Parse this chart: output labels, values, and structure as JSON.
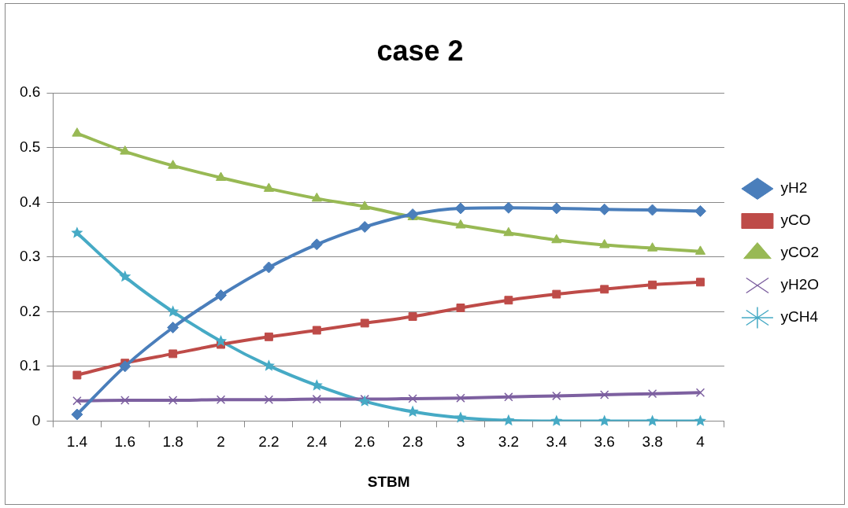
{
  "chart_data": {
    "type": "line",
    "title": "case 2",
    "xlabel": "STBM",
    "categories": [
      "1.4",
      "1.6",
      "1.8",
      "2",
      "2.2",
      "2.4",
      "2.6",
      "2.8",
      "3",
      "3.2",
      "3.4",
      "3.6",
      "3.8",
      "4"
    ],
    "ylim": [
      0,
      0.6
    ],
    "yticks": [
      0,
      0.1,
      0.2,
      0.3,
      0.4,
      0.5,
      0.6
    ],
    "grid": "y",
    "legend": "right",
    "series": [
      {
        "name": "yH2",
        "color": "#4a7ebb",
        "marker": "diamond",
        "values": [
          0.012,
          0.1,
          0.171,
          0.23,
          0.281,
          0.323,
          0.355,
          0.378,
          0.389,
          0.39,
          0.389,
          0.387,
          0.386,
          0.384
        ]
      },
      {
        "name": "yCO",
        "color": "#be4b48",
        "marker": "square",
        "values": [
          0.084,
          0.106,
          0.123,
          0.14,
          0.154,
          0.166,
          0.179,
          0.191,
          0.207,
          0.221,
          0.232,
          0.241,
          0.249,
          0.254
        ]
      },
      {
        "name": "yCO2",
        "color": "#98b954",
        "marker": "triangle",
        "values": [
          0.526,
          0.493,
          0.467,
          0.445,
          0.425,
          0.407,
          0.392,
          0.373,
          0.358,
          0.344,
          0.331,
          0.322,
          0.316,
          0.31
        ]
      },
      {
        "name": "yH2O",
        "color": "#7d60a0",
        "marker": "cross",
        "values": [
          0.037,
          0.038,
          0.038,
          0.039,
          0.039,
          0.04,
          0.04,
          0.041,
          0.042,
          0.044,
          0.046,
          0.048,
          0.05,
          0.052
        ]
      },
      {
        "name": "yCH4",
        "color": "#46aac5",
        "marker": "star",
        "values": [
          0.344,
          0.264,
          0.2,
          0.146,
          0.101,
          0.065,
          0.036,
          0.017,
          0.006,
          0.001,
          0,
          0,
          0,
          0
        ]
      }
    ]
  }
}
